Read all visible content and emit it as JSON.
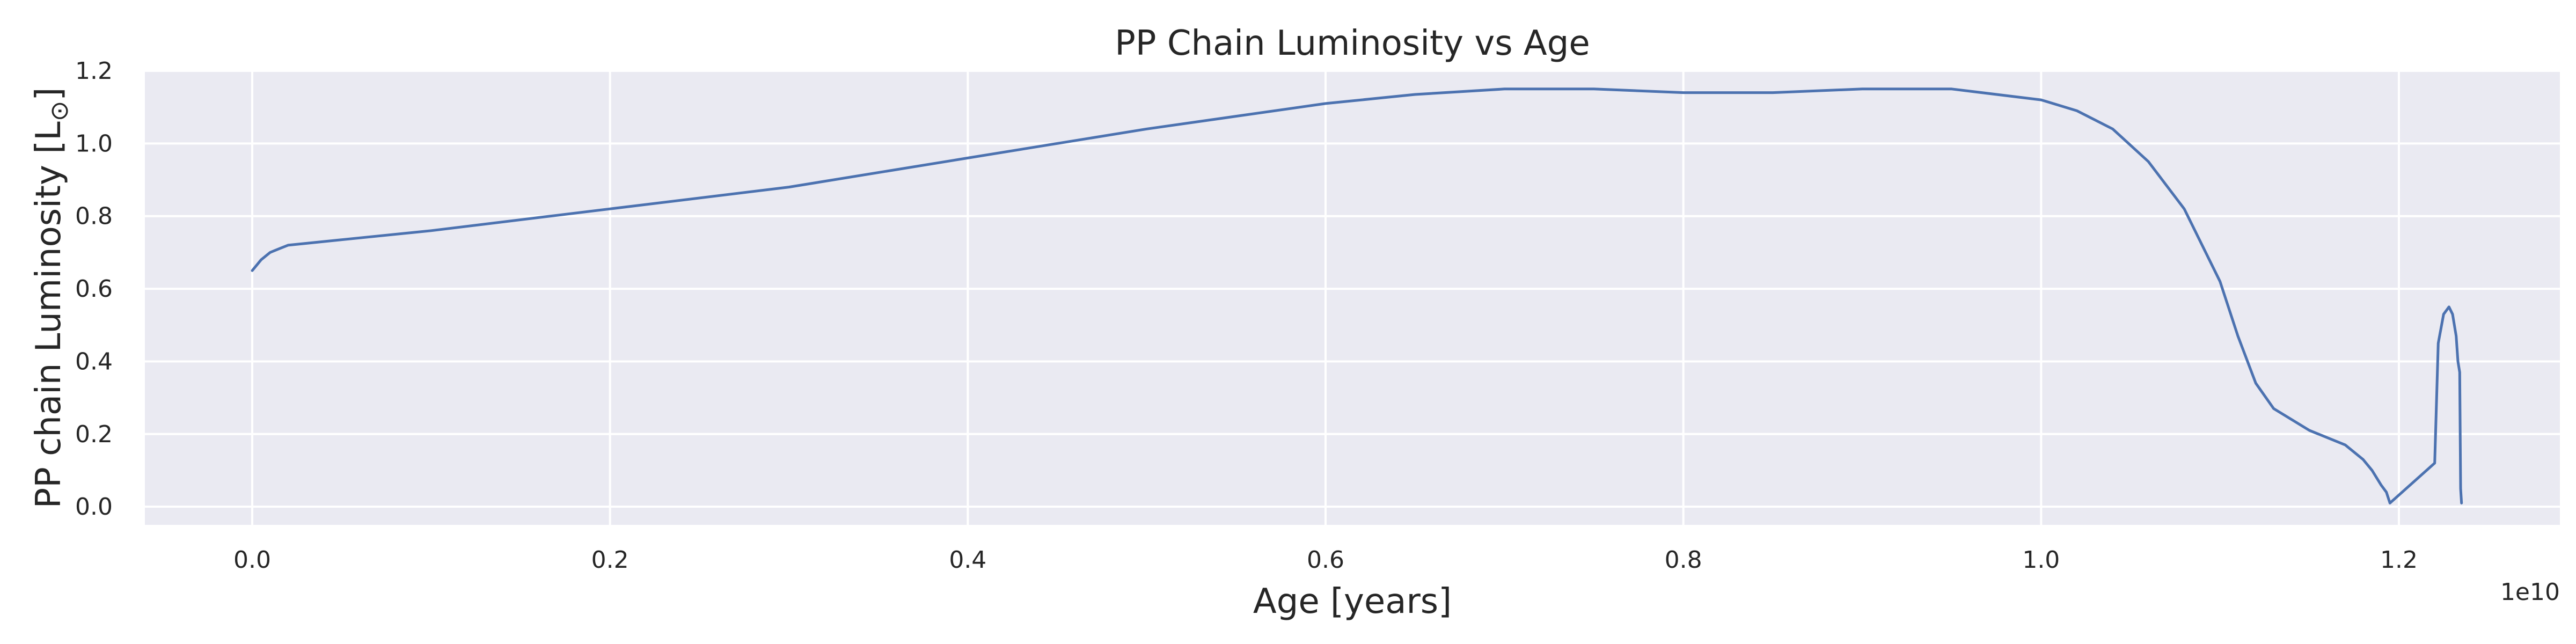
{
  "chart_data": {
    "type": "line",
    "title": "PP Chain Luminosity vs Age",
    "xlabel": "Age [years]",
    "ylabel": "PP chain Luminosity [L",
    "ylabel_subscript": "⊙",
    "ylabel_close": "]",
    "x_offset_text": "1e10",
    "xlim": [
      -0.06,
      1.29
    ],
    "ylim": [
      -0.05,
      1.2
    ],
    "xticks": [
      0.0,
      0.2,
      0.4,
      0.6,
      0.8,
      1.0,
      1.2
    ],
    "xtick_labels": [
      "0.0",
      "0.2",
      "0.4",
      "0.6",
      "0.8",
      "1.0",
      "1.2"
    ],
    "yticks": [
      0.0,
      0.2,
      0.4,
      0.6,
      0.8,
      1.0,
      1.2
    ],
    "ytick_labels": [
      "0.0",
      "0.2",
      "0.4",
      "0.6",
      "0.8",
      "1.0",
      "1.2"
    ],
    "grid": true,
    "background_color": "#eaeaf2",
    "line_color": "#4c72b0",
    "series": [
      {
        "x": [
          0.0,
          0.005,
          0.01,
          0.015,
          0.02,
          0.03,
          0.05,
          0.1,
          0.2,
          0.3,
          0.4,
          0.5,
          0.6,
          0.65,
          0.7,
          0.75,
          0.8,
          0.85,
          0.9,
          0.95,
          1.0,
          1.02,
          1.04,
          1.06,
          1.08,
          1.1,
          1.11,
          1.12,
          1.13,
          1.15,
          1.17,
          1.18,
          1.185,
          1.19,
          1.193,
          1.195,
          1.22,
          1.222,
          1.225,
          1.228,
          1.23,
          1.232,
          1.233,
          1.234,
          1.2345,
          1.235
        ],
        "y": [
          0.65,
          0.68,
          0.7,
          0.71,
          0.72,
          0.725,
          0.735,
          0.76,
          0.82,
          0.88,
          0.96,
          1.04,
          1.11,
          1.135,
          1.15,
          1.15,
          1.14,
          1.14,
          1.15,
          1.15,
          1.12,
          1.09,
          1.04,
          0.95,
          0.82,
          0.62,
          0.47,
          0.34,
          0.27,
          0.21,
          0.17,
          0.13,
          0.1,
          0.06,
          0.04,
          0.01,
          0.12,
          0.45,
          0.53,
          0.55,
          0.53,
          0.47,
          0.4,
          0.37,
          0.05,
          0.01
        ]
      }
    ]
  }
}
